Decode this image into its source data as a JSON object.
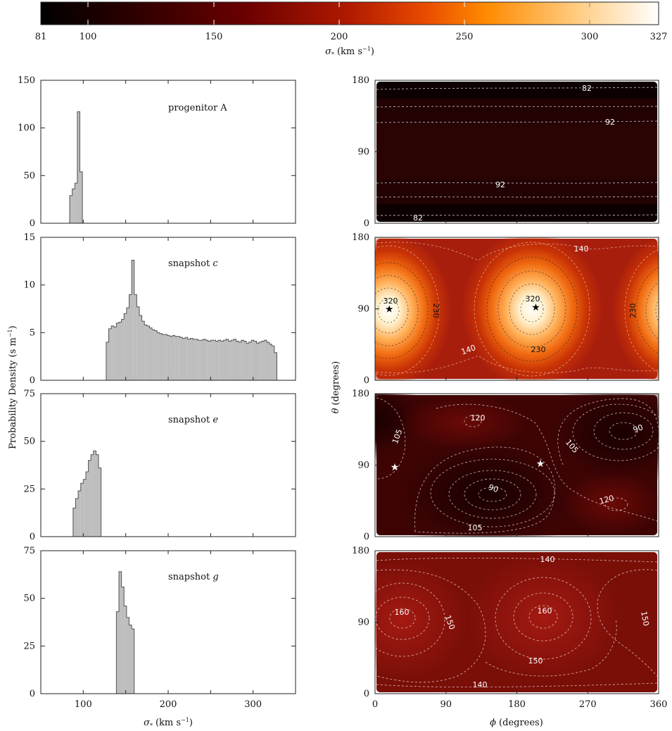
{
  "colorbar": {
    "ticks": [
      "81",
      "100",
      "150",
      "200",
      "250",
      "300",
      "327"
    ],
    "label_symbol": "σ",
    "label_sub": "*",
    "label_units": "(km s",
    "label_exp": "−1",
    "label_close": ")"
  },
  "left_ylabel": {
    "text": "Probability Density (s m",
    "exp": "−1",
    "close": ")"
  },
  "left_xlabel": {
    "symbol": "σ",
    "sub": "*",
    "units": "(km s",
    "exp": "−1",
    "close": ")"
  },
  "right_ylabel": {
    "symbol": "θ",
    "rest": "(degrees)"
  },
  "right_xlabel": {
    "symbol": "ϕ",
    "rest": "(degrees)"
  },
  "hist_xticks": [
    "100",
    "200",
    "300"
  ],
  "map_xticks": [
    "0",
    "90",
    "180",
    "270",
    "360"
  ],
  "map_yticks": [
    "0",
    "90",
    "180"
  ],
  "colors": {
    "hist_fill": "#bdbdbd",
    "hist_edge": "#555555",
    "colormap": [
      "#000000",
      "#2a0000",
      "#6a0000",
      "#b11a00",
      "#e84a00",
      "#ff8a00",
      "#ffc97a",
      "#ffffff"
    ]
  },
  "chart_data": [
    {
      "type": "bar",
      "panel": "histogram",
      "annotation": "progenitor A",
      "xlim": [
        50,
        350
      ],
      "ylim": [
        0,
        150
      ],
      "yticks": [
        "0",
        "50",
        "100",
        "150"
      ],
      "bin_width": 3,
      "bins_start": [
        84,
        87,
        90,
        93,
        96
      ],
      "values": [
        29,
        36,
        42,
        117,
        54
      ]
    },
    {
      "type": "bar",
      "panel": "histogram",
      "annotation_text": "snapshot ",
      "annotation_italic": "c",
      "xlim": [
        50,
        350
      ],
      "ylim": [
        0,
        15
      ],
      "yticks": [
        "0",
        "5",
        "10",
        "15"
      ],
      "bin_width": 3,
      "bins_start": [
        127,
        130,
        133,
        136,
        139,
        142,
        145,
        148,
        151,
        154,
        157,
        160,
        163,
        166,
        169,
        172,
        175,
        178,
        181,
        184,
        187,
        190,
        193,
        196,
        199,
        202,
        205,
        208,
        211,
        214,
        217,
        220,
        223,
        226,
        229,
        232,
        235,
        238,
        241,
        244,
        247,
        250,
        253,
        256,
        259,
        262,
        265,
        268,
        271,
        274,
        277,
        280,
        283,
        286,
        289,
        292,
        295,
        298,
        301,
        304,
        307,
        310,
        313,
        316,
        319,
        322,
        325
      ],
      "values": [
        4.0,
        5.4,
        5.7,
        5.6,
        6.0,
        6.1,
        6.4,
        7.0,
        7.6,
        9.0,
        12.6,
        9.0,
        7.7,
        6.8,
        6.2,
        5.8,
        5.7,
        5.5,
        5.3,
        5.2,
        5.0,
        4.9,
        4.8,
        4.8,
        4.7,
        4.6,
        4.7,
        4.6,
        4.6,
        4.5,
        4.4,
        4.5,
        4.3,
        4.4,
        4.3,
        4.3,
        4.2,
        4.2,
        4.3,
        4.2,
        4.1,
        4.2,
        4.2,
        4.1,
        4.2,
        4.1,
        4.2,
        4.3,
        4.1,
        4.2,
        4.3,
        4.1,
        4.0,
        4.2,
        4.1,
        3.9,
        4.0,
        4.2,
        4.1,
        3.9,
        4.0,
        4.1,
        4.2,
        4.0,
        3.8,
        3.6,
        2.9
      ]
    },
    {
      "type": "bar",
      "panel": "histogram",
      "annotation_text": "snapshot ",
      "annotation_italic": "e",
      "xlim": [
        50,
        350
      ],
      "ylim": [
        0,
        75
      ],
      "yticks": [
        "0",
        "25",
        "50",
        "75"
      ],
      "bin_width": 3,
      "bins_start": [
        88,
        91,
        94,
        97,
        100,
        103,
        106,
        109,
        112,
        115,
        118
      ],
      "values": [
        15,
        20,
        24,
        28,
        30,
        34,
        40,
        43,
        45,
        43,
        36
      ]
    },
    {
      "type": "bar",
      "panel": "histogram",
      "annotation_text": "snapshot ",
      "annotation_italic": "g",
      "xlim": [
        50,
        350
      ],
      "ylim": [
        0,
        75
      ],
      "yticks": [
        "0",
        "25",
        "50",
        "75"
      ],
      "bin_width": 3,
      "bins_start": [
        139,
        142,
        145,
        148,
        151,
        154,
        157
      ],
      "values": [
        43,
        64,
        56,
        46,
        40,
        36,
        34
      ]
    },
    {
      "type": "heatmap",
      "panel": "map",
      "xlabel": "ϕ (degrees)",
      "ylabel": "θ (degrees)",
      "xlim": [
        0,
        360
      ],
      "ylim": [
        0,
        180
      ],
      "colorbar_range": [
        81,
        327
      ],
      "contour_labels": [
        "82",
        "92",
        "92",
        "82"
      ],
      "stars": []
    },
    {
      "type": "heatmap",
      "panel": "map",
      "xlim": [
        0,
        360
      ],
      "ylim": [
        0,
        180
      ],
      "contour_labels": [
        "140",
        "320",
        "230",
        "320",
        "230",
        "140",
        "230"
      ],
      "stars": [
        {
          "phi": 18,
          "theta": 90,
          "color": "black"
        },
        {
          "phi": 204,
          "theta": 92,
          "color": "black"
        }
      ]
    },
    {
      "type": "heatmap",
      "panel": "map",
      "xlim": [
        0,
        360
      ],
      "ylim": [
        0,
        180
      ],
      "contour_labels": [
        "105",
        "120",
        "90",
        "105",
        "90",
        "120",
        "105"
      ],
      "stars": [
        {
          "phi": 25,
          "theta": 88,
          "color": "white"
        },
        {
          "phi": 210,
          "theta": 92,
          "color": "white"
        }
      ]
    },
    {
      "type": "heatmap",
      "panel": "map",
      "xlim": [
        0,
        360
      ],
      "ylim": [
        0,
        180
      ],
      "contour_labels": [
        "140",
        "160",
        "150",
        "160",
        "150",
        "150",
        "140"
      ],
      "stars": []
    }
  ]
}
